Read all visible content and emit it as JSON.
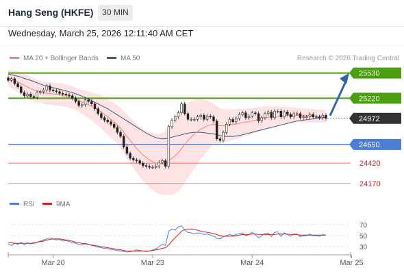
{
  "header": {
    "title": "Hang Seng (HKFE)",
    "interval": "30 MIN",
    "datetime": "Wednesday, March 25, 2026 12:11:40 AM CET"
  },
  "legend": {
    "ma20_bb": "MA 20 + Bollinger Bands",
    "ma50": "MA 50",
    "credit": "Research © 2026 Trading Central"
  },
  "rsi_legend": {
    "rsi": "RSI",
    "ma9": "9MA"
  },
  "colors": {
    "resistance": "#4a9e0f",
    "support": "#4a7fd4",
    "minor_support": "#e06666",
    "current": "#333333",
    "ma20": "#f08080",
    "ma50": "#3b5a8a",
    "bb_fill": "#fde3e3",
    "candle_up": "#ffffff",
    "candle_down": "#ffffff",
    "candle_outline": "#222222",
    "arrow": "#2d64a8",
    "rsi": "#4a7fd4",
    "rsi_ma": "#d62020"
  },
  "chart_data": {
    "type": "line",
    "title": "Hang Seng (HKFE) 30 MIN",
    "ylim": [
      24050,
      25620
    ],
    "levels": [
      {
        "label": "25530",
        "value": 25530,
        "kind": "resistance"
      },
      {
        "label": "25220",
        "value": 25220,
        "kind": "resistance"
      },
      {
        "label": "24972",
        "value": 24972,
        "kind": "current"
      },
      {
        "label": "24650",
        "value": 24650,
        "kind": "support"
      },
      {
        "label": "24420",
        "value": 24420,
        "kind": "minor_support"
      },
      {
        "label": "24170",
        "value": 24170,
        "kind": "minor_support"
      }
    ],
    "x_ticks": [
      "Mar 20",
      "Mar 23",
      "Mar 24",
      "Mar 25"
    ],
    "x_tick_index": [
      14,
      45,
      76,
      107
    ],
    "closes": [
      25440,
      25460,
      25400,
      25360,
      25290,
      25250,
      25270,
      25240,
      25230,
      25290,
      25300,
      25320,
      25370,
      25320,
      25310,
      25300,
      25280,
      25270,
      25260,
      25250,
      25220,
      25180,
      25130,
      25140,
      25200,
      25180,
      25150,
      25090,
      25030,
      24980,
      24950,
      24930,
      24900,
      24860,
      24800,
      24750,
      24620,
      24540,
      24480,
      24460,
      24450,
      24420,
      24390,
      24380,
      24370,
      24370,
      24380,
      24430,
      24450,
      24380,
      24870,
      24950,
      24990,
      25040,
      25150,
      25030,
      24960,
      24960,
      24960,
      24990,
      25010,
      24960,
      25000,
      24990,
      24940,
      24720,
      24700,
      24800,
      24900,
      24960,
      24930,
      24970,
      25020,
      25040,
      24980,
      25000,
      25040,
      25030,
      24940,
      24980,
      25030,
      25050,
      24980,
      25060,
      25060,
      24990,
      25050,
      25020,
      24990,
      25030,
      25030,
      24980,
      24990,
      24990,
      25020,
      24990,
      24990,
      24980,
      25010,
      24972
    ],
    "ma20": [
      25470,
      25455,
      25440,
      25420,
      25400,
      25380,
      25360,
      25340,
      25320,
      25310,
      25300,
      25290,
      25280,
      25280,
      25270,
      25270,
      25265,
      25260,
      25250,
      25240,
      25230,
      25210,
      25190,
      25175,
      25160,
      25140,
      25120,
      25100,
      25075,
      25050,
      25020,
      24990,
      24960,
      24930,
      24890,
      24850,
      24800,
      24750,
      24700,
      24650,
      24600,
      24560,
      24520,
      24490,
      24460,
      24440,
      24420,
      24410,
      24410,
      24420,
      24450,
      24480,
      24510,
      24550,
      24600,
      24650,
      24700,
      24740,
      24780,
      24810,
      24840,
      24860,
      24880,
      24890,
      24900,
      24890,
      24880,
      24880,
      24880,
      24890,
      24895,
      24900,
      24910,
      24920,
      24925,
      24930,
      24940,
      24950,
      24960,
      24970,
      24980,
      24985,
      24990,
      24995,
      25000,
      25000,
      25005,
      25010,
      25010,
      25010,
      25010,
      25010,
      25010,
      25005,
      25005,
      25005,
      25000,
      25000,
      25000,
      24995
    ],
    "ma50": [
      25520,
      25510,
      25500,
      25490,
      25480,
      25465,
      25450,
      25440,
      25425,
      25410,
      25395,
      25380,
      25370,
      25360,
      25350,
      25340,
      25330,
      25320,
      25310,
      25300,
      25290,
      25275,
      25260,
      25245,
      25230,
      25210,
      25190,
      25170,
      25150,
      25130,
      25110,
      25090,
      25065,
      25040,
      25015,
      24990,
      24965,
      24940,
      24915,
      24890,
      24865,
      24840,
      24815,
      24790,
      24770,
      24750,
      24735,
      24725,
      24720,
      24720,
      24730,
      24740,
      24750,
      24760,
      24770,
      24780,
      24790,
      24795,
      24800,
      24800,
      24800,
      24795,
      24790,
      24785,
      24780,
      24770,
      24760,
      24755,
      24750,
      24750,
      24750,
      24755,
      24760,
      24770,
      24780,
      24790,
      24800,
      24810,
      24820,
      24830,
      24840,
      24850,
      24860,
      24870,
      24880,
      24890,
      24900,
      24910,
      24920,
      24930,
      24940,
      24945,
      24950,
      24955,
      24960,
      24965,
      24970,
      24975,
      24980,
      24985
    ],
    "bb_width": [
      100,
      110,
      120,
      130,
      135,
      140,
      140,
      140,
      140,
      140,
      140,
      140,
      140,
      140,
      140,
      140,
      140,
      140,
      140,
      140,
      140,
      140,
      145,
      150,
      155,
      165,
      175,
      185,
      195,
      205,
      215,
      220,
      225,
      230,
      240,
      250,
      260,
      270,
      280,
      290,
      300,
      310,
      320,
      330,
      340,
      350,
      360,
      370,
      380,
      390,
      420,
      450,
      470,
      480,
      480,
      470,
      460,
      440,
      420,
      400,
      370,
      340,
      310,
      280,
      250,
      230,
      220,
      210,
      200,
      195,
      190,
      185,
      180,
      175,
      170,
      165,
      160,
      155,
      150,
      145,
      140,
      135,
      130,
      125,
      120,
      115,
      110,
      105,
      100,
      95,
      90,
      88,
      86,
      85,
      84,
      83,
      82,
      81,
      80,
      80
    ],
    "rsi": [
      35,
      32,
      36,
      34,
      38,
      33,
      37,
      35,
      36,
      38,
      40,
      42,
      44,
      46,
      44,
      42,
      43,
      40,
      41,
      39,
      38,
      36,
      34,
      33,
      36,
      34,
      32,
      31,
      29,
      28,
      27,
      26,
      25,
      24,
      23,
      22,
      21,
      20,
      21,
      22,
      24,
      23,
      22,
      21,
      22,
      24,
      26,
      30,
      34,
      32,
      58,
      62,
      60,
      66,
      68,
      60,
      56,
      55,
      53,
      55,
      54,
      52,
      53,
      51,
      49,
      45,
      44,
      48,
      50,
      52,
      50,
      52,
      54,
      55,
      50,
      52,
      56,
      52,
      46,
      50,
      54,
      55,
      48,
      56,
      57,
      49,
      55,
      52,
      49,
      53,
      53,
      48,
      50,
      50,
      53,
      50,
      50,
      49,
      52,
      51
    ],
    "rsi_ma": [
      38,
      37,
      36,
      36,
      36,
      36,
      36,
      36,
      37,
      38,
      39,
      40,
      42,
      43,
      44,
      44,
      44,
      43,
      42,
      41,
      40,
      38,
      37,
      36,
      35,
      34,
      33,
      32,
      31,
      30,
      29,
      28,
      27,
      26,
      25,
      24,
      23,
      22,
      22,
      22,
      22,
      22,
      22,
      22,
      22,
      23,
      24,
      25,
      27,
      28,
      33,
      40,
      46,
      52,
      58,
      61,
      62,
      62,
      61,
      60,
      58,
      57,
      56,
      55,
      54,
      52,
      50,
      49,
      49,
      49,
      49,
      50,
      51,
      52,
      52,
      52,
      53,
      53,
      52,
      52,
      52,
      52,
      52,
      52,
      53,
      53,
      53,
      53,
      52,
      52,
      52,
      51,
      51,
      51,
      51,
      51,
      51,
      51,
      51,
      51
    ],
    "rsi_levels": [
      "70",
      "50",
      "30"
    ],
    "rsi_level_values": [
      70,
      50,
      30
    ],
    "arrow_target": 25530
  }
}
